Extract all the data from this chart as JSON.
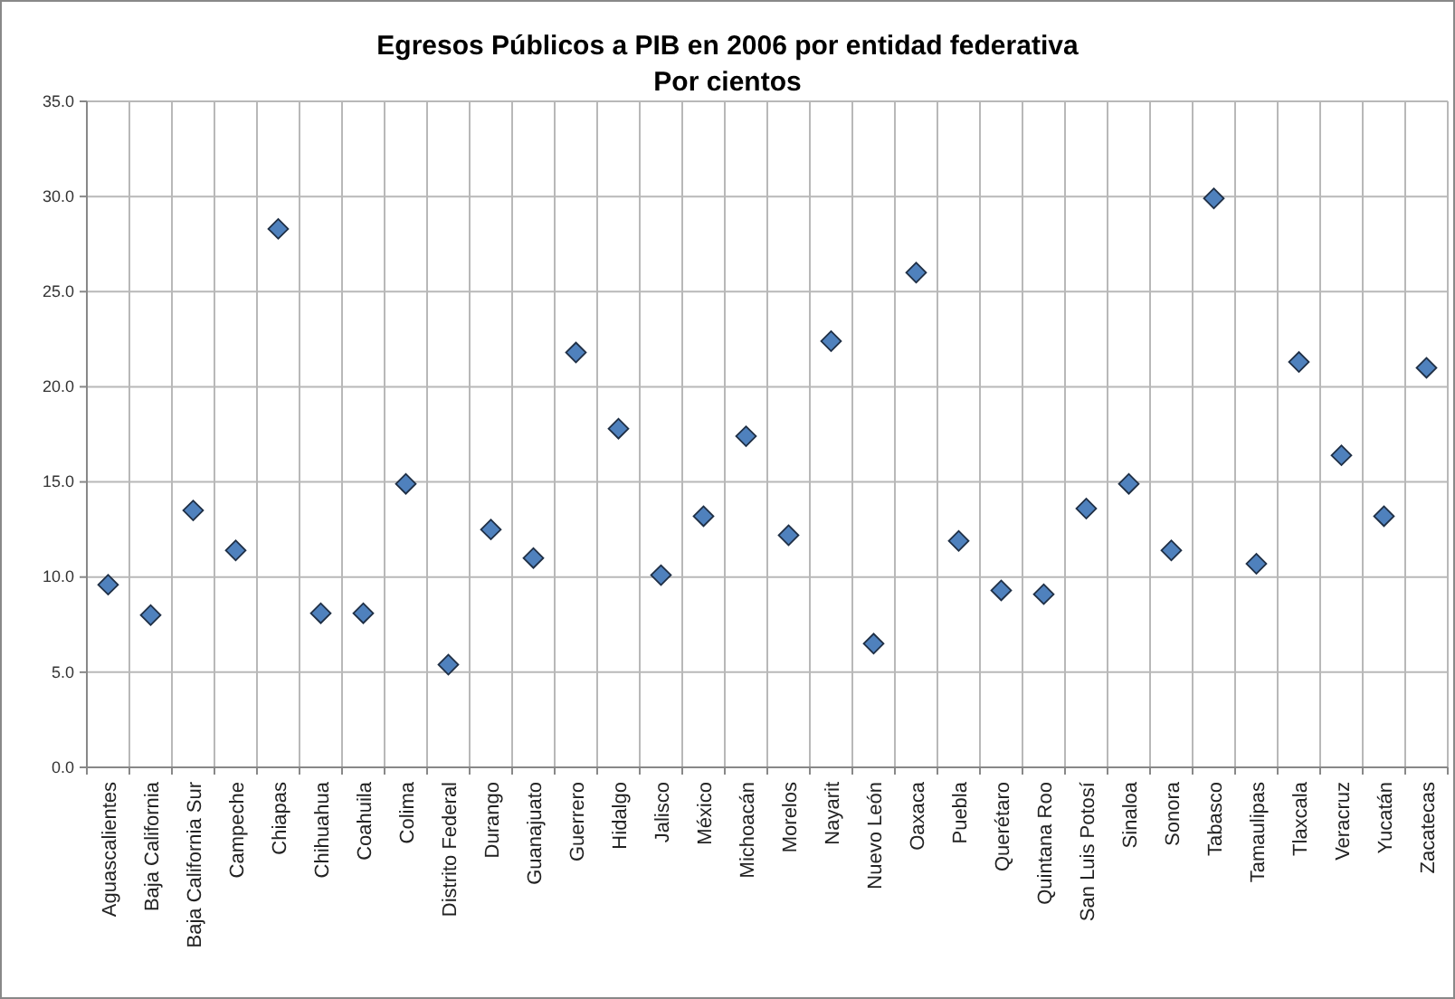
{
  "chart_data": {
    "type": "scatter",
    "title": "Egresos Públicos a PIB en 2006 por entidad federativa",
    "subtitle": "Por cientos",
    "categories": [
      "Aguascalientes",
      "Baja California",
      "Baja California Sur",
      "Campeche",
      "Chiapas",
      "Chihuahua",
      "Coahuila",
      "Colima",
      "Distrito Federal",
      "Durango",
      "Guanajuato",
      "Guerrero",
      "Hidalgo",
      "Jalisco",
      "México",
      "Michoacán",
      "Morelos",
      "Nayarit",
      "Nuevo León",
      "Oaxaca",
      "Puebla",
      "Querétaro",
      "Quintana Roo",
      "San Luis Potosí",
      "Sinaloa",
      "Sonora",
      "Tabasco",
      "Tamaulipas",
      "Tlaxcala",
      "Veracruz",
      "Yucatán",
      "Zacatecas"
    ],
    "values": [
      9.6,
      8.0,
      13.5,
      11.4,
      28.3,
      8.1,
      8.1,
      14.9,
      5.4,
      12.5,
      11.0,
      21.8,
      17.8,
      10.1,
      13.2,
      17.4,
      12.2,
      22.4,
      6.5,
      26.0,
      11.9,
      9.3,
      9.1,
      13.6,
      14.9,
      11.4,
      29.9,
      10.7,
      21.3,
      16.4,
      13.2,
      21.0
    ],
    "color": "#4f81bd",
    "marker": "diamond",
    "grid": true,
    "ylim": [
      0,
      35
    ],
    "yticks": [
      {
        "value": 0,
        "label": "0.0"
      },
      {
        "value": 5,
        "label": "5.0"
      },
      {
        "value": 10,
        "label": "10.0"
      },
      {
        "value": 15,
        "label": "15.0"
      },
      {
        "value": 20,
        "label": "20.0"
      },
      {
        "value": 25,
        "label": "25.0"
      },
      {
        "value": 30,
        "label": "30.0"
      },
      {
        "value": 35,
        "label": "35.0"
      }
    ]
  }
}
